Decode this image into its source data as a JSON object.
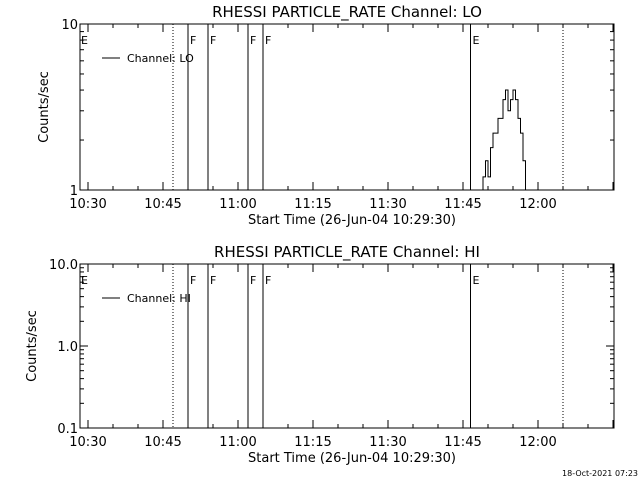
{
  "chart_data": [
    {
      "type": "line",
      "title": "RHESSI PARTICLE_RATE Channel: LO",
      "xlabel": "Start Time (26-Jun-04 10:29:30)",
      "ylabel": "Counts/sec",
      "x_ticks": [
        "10:30",
        "10:45",
        "11:00",
        "11:15",
        "11:30",
        "11:45",
        "12:00"
      ],
      "y_scale": "log",
      "ylim": [
        1,
        10
      ],
      "y_ticks": [
        "1",
        "10"
      ],
      "legend": "top-left",
      "series": [
        {
          "name": "Channel: LO",
          "points": [
            [
              "11:48:00",
              0.8
            ],
            [
              "11:49:00",
              1.2
            ],
            [
              "11:49:30",
              1.5
            ],
            [
              "11:50:00",
              1.2
            ],
            [
              "11:50:30",
              1.8
            ],
            [
              "11:51:00",
              2.2
            ],
            [
              "11:52:00",
              2.7
            ],
            [
              "11:53:00",
              3.5
            ],
            [
              "11:53:30",
              4.0
            ],
            [
              "11:54:00",
              3.0
            ],
            [
              "11:54:30",
              3.5
            ],
            [
              "11:55:00",
              4.0
            ],
            [
              "11:55:30",
              3.5
            ],
            [
              "11:56:00",
              2.7
            ],
            [
              "11:56:30",
              2.2
            ],
            [
              "11:57:00",
              1.5
            ],
            [
              "11:57:30",
              1.0
            ],
            [
              "11:58:00",
              0.8
            ]
          ]
        }
      ],
      "solid_markers": [
        {
          "time": "10:50:00",
          "label": "F"
        },
        {
          "time": "10:54:00",
          "label": "F"
        },
        {
          "time": "11:02:00",
          "label": "F"
        },
        {
          "time": "11:05:00",
          "label": "F"
        },
        {
          "time": "11:46:30",
          "label": "E"
        }
      ],
      "dotted_markers": [
        {
          "time": "10:47:00",
          "label": "E"
        },
        {
          "time": "12:05:00",
          "label": ""
        }
      ]
    },
    {
      "type": "line",
      "title": "RHESSI PARTICLE_RATE Channel: HI",
      "xlabel": "Start Time (26-Jun-04 10:29:30)",
      "ylabel": "Counts/sec",
      "x_ticks": [
        "10:30",
        "10:45",
        "11:00",
        "11:15",
        "11:30",
        "11:45",
        "12:00"
      ],
      "y_scale": "log",
      "ylim": [
        0.1,
        10
      ],
      "y_ticks": [
        "0.1",
        "1.0",
        "10.0"
      ],
      "legend": "top-left",
      "series": [
        {
          "name": "Channel: HI",
          "points": []
        }
      ],
      "solid_markers": [
        {
          "time": "10:50:00",
          "label": "F"
        },
        {
          "time": "10:54:00",
          "label": "F"
        },
        {
          "time": "11:02:00",
          "label": "F"
        },
        {
          "time": "11:05:00",
          "label": "F"
        },
        {
          "time": "11:46:30",
          "label": "E"
        }
      ],
      "dotted_markers": [
        {
          "time": "10:47:00",
          "label": "E"
        },
        {
          "time": "12:05:00",
          "label": ""
        }
      ]
    }
  ],
  "timestamp": "18-Oct-2021 07:23"
}
